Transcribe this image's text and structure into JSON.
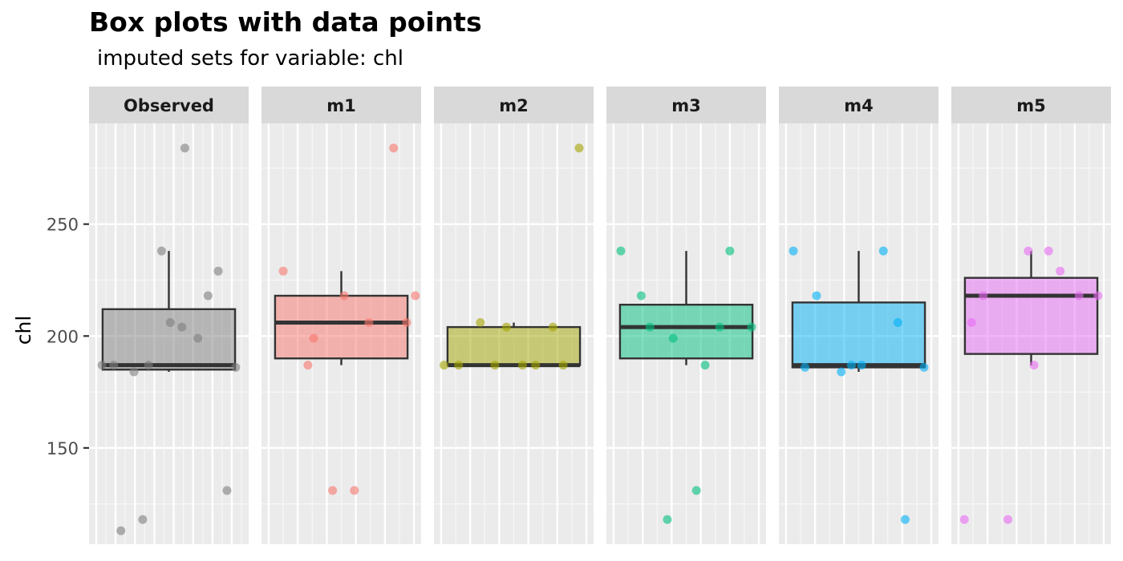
{
  "title": "Box plots with data points",
  "subtitle": "imputed sets for variable:  chl",
  "chart_data": {
    "type": "box",
    "title": "Box plots with data points",
    "subtitle": "imputed sets for variable:  chl",
    "ylabel": "chl",
    "xlabel": "",
    "ylim": [
      107,
      295
    ],
    "yticks": [
      150,
      200,
      250
    ],
    "ytick_labels": [
      "150",
      "200",
      "250"
    ],
    "legend": "none",
    "grid": true,
    "panels": [
      {
        "name": "Observed",
        "color": "#7f7f7f",
        "box": {
          "q1": 185,
          "median": 187,
          "q3": 212,
          "whisker_low": 184,
          "whisker_high": 238
        },
        "points": [
          {
            "x": 0.04,
            "y": 187
          },
          {
            "x": 0.12,
            "y": 187
          },
          {
            "x": 0.17,
            "y": 113
          },
          {
            "x": 0.26,
            "y": 184
          },
          {
            "x": 0.32,
            "y": 118
          },
          {
            "x": 0.36,
            "y": 187
          },
          {
            "x": 0.45,
            "y": 238
          },
          {
            "x": 0.51,
            "y": 206
          },
          {
            "x": 0.59,
            "y": 204
          },
          {
            "x": 0.61,
            "y": 284
          },
          {
            "x": 0.7,
            "y": 199
          },
          {
            "x": 0.77,
            "y": 218
          },
          {
            "x": 0.84,
            "y": 229
          },
          {
            "x": 0.9,
            "y": 131
          },
          {
            "x": 0.96,
            "y": 186
          }
        ]
      },
      {
        "name": "m1",
        "color": "#f8766d",
        "box": {
          "q1": 190,
          "median": 206,
          "q3": 218,
          "whisker_low": 187,
          "whisker_high": 229
        },
        "points": [
          {
            "x": 0.1,
            "y": 229
          },
          {
            "x": 0.27,
            "y": 187
          },
          {
            "x": 0.31,
            "y": 199
          },
          {
            "x": 0.44,
            "y": 131
          },
          {
            "x": 0.52,
            "y": 218
          },
          {
            "x": 0.59,
            "y": 131
          },
          {
            "x": 0.69,
            "y": 206
          },
          {
            "x": 0.86,
            "y": 284
          },
          {
            "x": 0.95,
            "y": 206
          },
          {
            "x": 1.01,
            "y": 218
          }
        ]
      },
      {
        "name": "m2",
        "color": "#a3a500",
        "box": {
          "q1": 187,
          "median": 187,
          "q3": 204,
          "whisker_low": 187,
          "whisker_high": 206
        },
        "points": [
          {
            "x": 0.02,
            "y": 187
          },
          {
            "x": 0.12,
            "y": 187
          },
          {
            "x": 0.27,
            "y": 206
          },
          {
            "x": 0.37,
            "y": 187
          },
          {
            "x": 0.45,
            "y": 204
          },
          {
            "x": 0.56,
            "y": 187
          },
          {
            "x": 0.65,
            "y": 187
          },
          {
            "x": 0.77,
            "y": 204
          },
          {
            "x": 0.84,
            "y": 187
          },
          {
            "x": 0.95,
            "y": 284
          }
        ]
      },
      {
        "name": "m3",
        "color": "#00bf7d",
        "box": {
          "q1": 190,
          "median": 204,
          "q3": 214,
          "whisker_low": 187,
          "whisker_high": 238
        },
        "points": [
          {
            "x": 0.05,
            "y": 238
          },
          {
            "x": 0.19,
            "y": 218
          },
          {
            "x": 0.25,
            "y": 204
          },
          {
            "x": 0.37,
            "y": 118
          },
          {
            "x": 0.41,
            "y": 199
          },
          {
            "x": 0.57,
            "y": 131
          },
          {
            "x": 0.63,
            "y": 187
          },
          {
            "x": 0.73,
            "y": 204
          },
          {
            "x": 0.8,
            "y": 238
          },
          {
            "x": 0.95,
            "y": 204
          }
        ]
      },
      {
        "name": "m4",
        "color": "#00b0f6",
        "box": {
          "q1": 186,
          "median": 187,
          "q3": 215,
          "whisker_low": 184,
          "whisker_high": 238
        },
        "points": [
          {
            "x": 0.05,
            "y": 238
          },
          {
            "x": 0.13,
            "y": 186
          },
          {
            "x": 0.21,
            "y": 218
          },
          {
            "x": 0.38,
            "y": 184
          },
          {
            "x": 0.45,
            "y": 187
          },
          {
            "x": 0.52,
            "y": 187
          },
          {
            "x": 0.67,
            "y": 238
          },
          {
            "x": 0.77,
            "y": 206
          },
          {
            "x": 0.82,
            "y": 118
          },
          {
            "x": 0.95,
            "y": 186
          }
        ]
      },
      {
        "name": "m5",
        "color": "#e76bf3",
        "box": {
          "q1": 192,
          "median": 218,
          "q3": 226,
          "whisker_low": 187,
          "whisker_high": 238
        },
        "points": [
          {
            "x": 0.04,
            "y": 118
          },
          {
            "x": 0.09,
            "y": 206
          },
          {
            "x": 0.17,
            "y": 218
          },
          {
            "x": 0.34,
            "y": 118
          },
          {
            "x": 0.48,
            "y": 238
          },
          {
            "x": 0.52,
            "y": 187
          },
          {
            "x": 0.62,
            "y": 238
          },
          {
            "x": 0.7,
            "y": 229
          },
          {
            "x": 0.83,
            "y": 218
          },
          {
            "x": 0.96,
            "y": 218
          }
        ]
      }
    ]
  }
}
